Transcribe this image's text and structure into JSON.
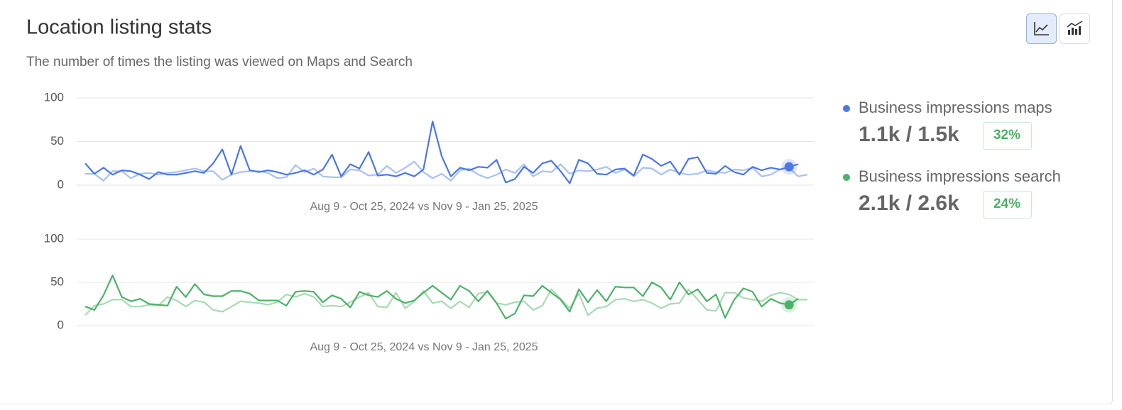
{
  "header": {
    "title": "Location listing stats",
    "subtitle": "The number of times the listing was viewed on Maps and Search"
  },
  "chart_data": [
    {
      "type": "line",
      "xlabel": "Aug 9 - Oct 25, 2024 vs Nov 9 - Jan 25, 2025",
      "ylim": [
        0,
        100
      ],
      "yticks": [
        0,
        50,
        100
      ],
      "grid": true,
      "legend_stats": "1.1k / 1.5k",
      "change": "32%",
      "series": [
        {
          "name": "Business impressions maps",
          "color": "#4a76ea",
          "values": [
            25,
            13,
            20,
            12,
            17,
            16,
            12,
            7,
            15,
            12,
            12,
            14,
            16,
            14,
            25,
            41,
            12,
            45,
            17,
            15,
            17,
            15,
            12,
            14,
            17,
            12,
            18,
            35,
            10,
            24,
            19,
            38,
            11,
            12,
            10,
            14,
            10,
            18,
            73,
            33,
            10,
            20,
            17,
            21,
            20,
            29,
            3,
            7,
            21,
            14,
            25,
            28,
            16,
            2,
            29,
            25,
            13,
            12,
            18,
            19,
            11,
            35,
            30,
            22,
            27,
            12,
            30,
            32,
            14,
            13,
            22,
            15,
            12,
            21,
            17,
            20,
            18,
            21,
            24,
            null
          ]
        },
        {
          "color": "#a9c0f5",
          "values": [
            13,
            13,
            5,
            16,
            16,
            8,
            13,
            14,
            12,
            14,
            15,
            17,
            19,
            16,
            16,
            6,
            12,
            15,
            16,
            16,
            14,
            8,
            9,
            23,
            15,
            19,
            10,
            9,
            9,
            18,
            17,
            11,
            12,
            22,
            14,
            20,
            27,
            15,
            8,
            13,
            5,
            17,
            19,
            12,
            8,
            12,
            18,
            14,
            24,
            10,
            16,
            15,
            24,
            13,
            17,
            16,
            18,
            21,
            14,
            18,
            10,
            20,
            19,
            12,
            18,
            14,
            12,
            13,
            17,
            15,
            14,
            18,
            17,
            20,
            10,
            12,
            18,
            20,
            10,
            12
          ]
        }
      ]
    },
    {
      "type": "line",
      "xlabel": "Aug 9 - Oct 25, 2024 vs Nov 9 - Jan 25, 2025",
      "ylim": [
        0,
        100
      ],
      "yticks": [
        0,
        50,
        100
      ],
      "grid": true,
      "legend_stats": "2.1k / 2.6k",
      "change": "24%",
      "series": [
        {
          "name": "Business impressions search",
          "color": "#4bb267",
          "values": [
            22,
            18,
            35,
            58,
            33,
            28,
            31,
            25,
            24,
            23,
            45,
            33,
            48,
            36,
            34,
            34,
            40,
            40,
            37,
            29,
            29,
            29,
            23,
            39,
            40,
            39,
            27,
            35,
            31,
            21,
            39,
            35,
            33,
            40,
            31,
            26,
            29,
            38,
            46,
            38,
            30,
            46,
            40,
            28,
            40,
            26,
            8,
            14,
            35,
            34,
            46,
            38,
            30,
            16,
            42,
            27,
            41,
            28,
            45,
            44,
            44,
            34,
            50,
            44,
            30,
            50,
            36,
            42,
            28,
            36,
            9,
            30,
            43,
            39,
            22,
            31,
            26,
            24,
            31,
            null
          ]
        },
        {
          "color": "#a8dab4",
          "values": [
            12,
            23,
            25,
            30,
            30,
            22,
            22,
            24,
            23,
            33,
            29,
            22,
            29,
            27,
            18,
            16,
            22,
            28,
            27,
            26,
            24,
            27,
            36,
            33,
            37,
            33,
            22,
            23,
            22,
            27,
            33,
            38,
            22,
            21,
            38,
            20,
            28,
            40,
            26,
            28,
            20,
            28,
            21,
            37,
            39,
            26,
            24,
            27,
            28,
            18,
            23,
            42,
            31,
            20,
            37,
            12,
            20,
            22,
            30,
            31,
            28,
            30,
            26,
            20,
            25,
            26,
            42,
            30,
            18,
            17,
            38,
            38,
            32,
            30,
            28,
            35,
            38,
            36,
            30,
            30
          ]
        }
      ]
    }
  ]
}
